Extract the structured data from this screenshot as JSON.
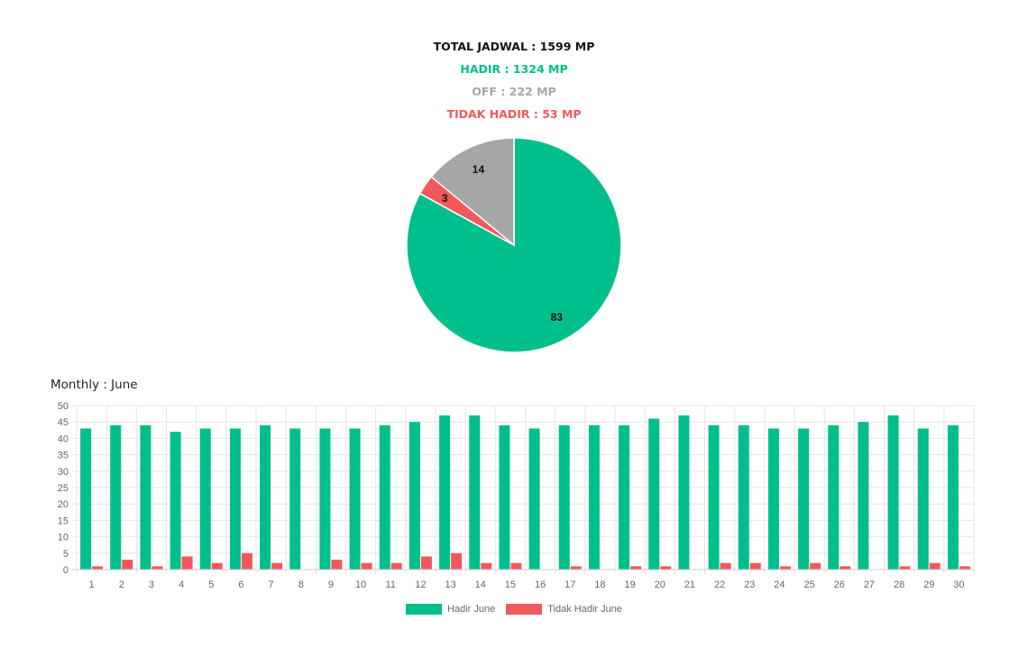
{
  "summary": {
    "total": "TOTAL JADWAL : 1599 MP",
    "hadir": "HADIR : 1324 MP",
    "off": "OFF : 222 MP",
    "tidak_hadir": "TIDAK HADIR : 53 MP"
  },
  "colors": {
    "hadir": "#00bf8c",
    "off": "#a6a6a6",
    "tidak_hadir": "#f2585b",
    "grid": "#e6e6e6",
    "axis_text": "#666666"
  },
  "monthly_title": "Monthly : June",
  "chart_data": [
    {
      "type": "pie",
      "slices": [
        {
          "label": "Hadir",
          "value": 83,
          "color": "#00bf8c"
        },
        {
          "label": "Tidak Hadir",
          "value": 3,
          "color": "#f2585b"
        },
        {
          "label": "Off",
          "value": 14,
          "color": "#a6a6a6"
        }
      ],
      "data_labels": [
        "83",
        "3",
        "14"
      ]
    },
    {
      "type": "bar",
      "title": "Monthly : June",
      "categories": [
        "1",
        "2",
        "3",
        "4",
        "5",
        "6",
        "7",
        "8",
        "9",
        "10",
        "11",
        "12",
        "13",
        "14",
        "15",
        "16",
        "17",
        "18",
        "19",
        "20",
        "21",
        "22",
        "23",
        "24",
        "25",
        "26",
        "27",
        "28",
        "29",
        "30"
      ],
      "series": [
        {
          "name": "Hadir June",
          "color": "#00bf8c",
          "values": [
            43,
            44,
            44,
            42,
            43,
            43,
            44,
            43,
            43,
            43,
            44,
            45,
            47,
            47,
            44,
            43,
            44,
            44,
            44,
            46,
            47,
            44,
            44,
            43,
            43,
            44,
            45,
            47,
            43,
            44
          ]
        },
        {
          "name": "Tidak Hadir June",
          "color": "#f2585b",
          "values": [
            1,
            3,
            1,
            4,
            2,
            5,
            2,
            0,
            3,
            2,
            2,
            4,
            5,
            2,
            2,
            0,
            1,
            0,
            1,
            1,
            0,
            2,
            2,
            1,
            2,
            1,
            0,
            1,
            2,
            1
          ]
        }
      ],
      "ylim": [
        0,
        50
      ],
      "yticks": [
        "0",
        "5",
        "10",
        "15",
        "20",
        "25",
        "30",
        "35",
        "40",
        "45",
        "50"
      ],
      "grid": true,
      "legend_position": "bottom"
    }
  ]
}
